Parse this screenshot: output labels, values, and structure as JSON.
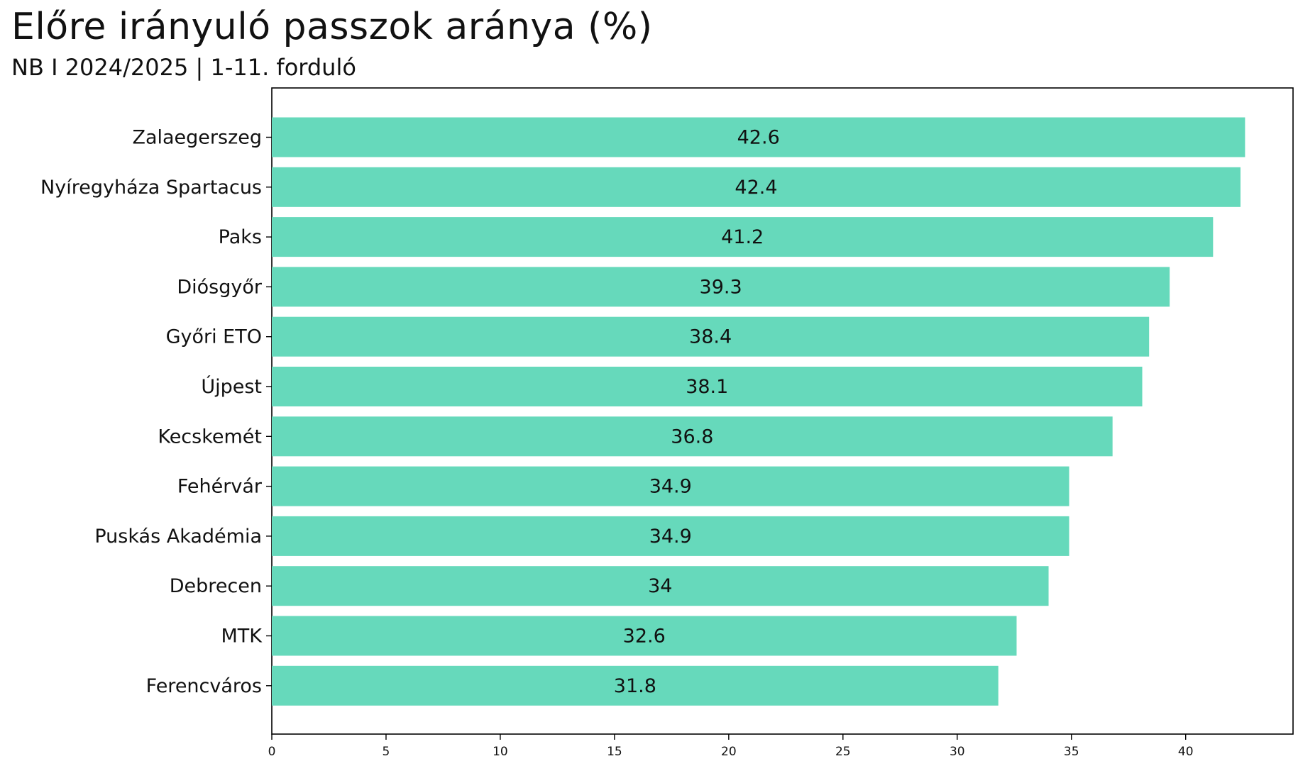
{
  "chart_data": {
    "type": "bar",
    "orientation": "horizontal",
    "title": "Előre irányuló passzok aránya (%)",
    "subtitle": "NB I 2024/2025  |  1-11. forduló",
    "xlabel": "",
    "ylabel": "",
    "categories": [
      "Zalaegerszeg",
      "Nyíregyháza Spartacus",
      "Paks",
      "Diósgyőr",
      "Győri ETO",
      "Újpest",
      "Kecskemét",
      "Fehérvár",
      "Puskás Akadémia",
      "Debrecen",
      "MTK",
      "Ferencváros"
    ],
    "values": [
      42.6,
      42.4,
      41.2,
      39.3,
      38.4,
      38.1,
      36.8,
      34.9,
      34.9,
      34,
      32.6,
      31.8
    ],
    "value_labels": [
      "42.6",
      "42.4",
      "41.2",
      "39.3",
      "38.4",
      "38.1",
      "36.8",
      "34.9",
      "34.9",
      "34",
      "32.6",
      "31.8"
    ],
    "xlim": [
      0,
      44.7
    ],
    "xticks": [
      0,
      5,
      10,
      15,
      20,
      25,
      30,
      35,
      40
    ],
    "xtick_labels": [
      "0",
      "5",
      "10",
      "15",
      "20",
      "25",
      "30",
      "35",
      "40"
    ],
    "bar_color": "#66d9bb",
    "grid": false,
    "legend": false
  }
}
